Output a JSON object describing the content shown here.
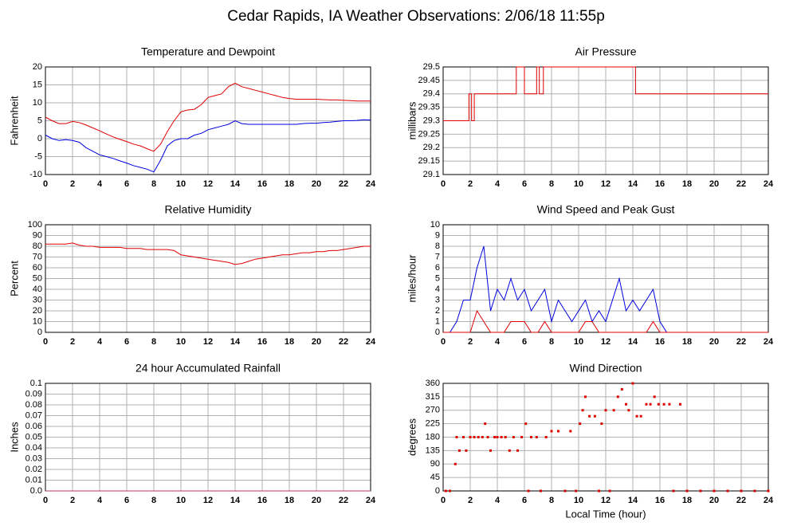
{
  "title": "Cedar Rapids, IA Weather Observations: 2/06/18 11:55p",
  "chart_data": [
    {
      "type": "line",
      "title": "Temperature and Dewpoint",
      "ylabel": "Fahrenheit",
      "xlim": [
        0,
        24
      ],
      "xticks": [
        0,
        2,
        4,
        6,
        8,
        10,
        12,
        14,
        16,
        18,
        20,
        22,
        24
      ],
      "ylim": [
        -10,
        20
      ],
      "yticks": [
        -10,
        -5,
        0,
        5,
        10,
        15,
        20
      ],
      "grid": true,
      "x": [
        0,
        0.5,
        1,
        1.5,
        2,
        2.5,
        3,
        3.5,
        4,
        4.5,
        5,
        5.5,
        6,
        6.5,
        7,
        7.5,
        8,
        8.5,
        9,
        9.5,
        10,
        10.5,
        11,
        11.5,
        12,
        12.5,
        13,
        13.5,
        14,
        14.5,
        15,
        15.5,
        16,
        16.5,
        17,
        17.5,
        18,
        18.5,
        19,
        19.5,
        20,
        20.5,
        21,
        21.5,
        22,
        22.5,
        23,
        23.5,
        24
      ],
      "series": [
        {
          "color": "#e00000",
          "values": [
            6,
            5,
            4.2,
            4.2,
            4.8,
            4.5,
            3.8,
            3,
            2.2,
            1.3,
            0.5,
            -0.2,
            -0.8,
            -1.5,
            -2,
            -2.8,
            -3.5,
            -1.5,
            2,
            5,
            7.5,
            8,
            8.2,
            9.5,
            11.5,
            12,
            12.5,
            14.5,
            15.5,
            14.5,
            14,
            13.5,
            13,
            12.5,
            12,
            11.5,
            11.2,
            11,
            11,
            11,
            11,
            10.9,
            10.8,
            10.8,
            10.7,
            10.6,
            10.5,
            10.5,
            10.5
          ]
        },
        {
          "color": "#0000e0",
          "values": [
            1,
            0,
            -0.5,
            -0.3,
            -0.5,
            -1,
            -2.5,
            -3.5,
            -4.5,
            -5,
            -5.5,
            -6.2,
            -6.8,
            -7.5,
            -8,
            -8.5,
            -9.3,
            -6,
            -2,
            -0.5,
            0,
            0,
            1,
            1.5,
            2.5,
            3,
            3.5,
            4,
            5,
            4.2,
            4,
            4,
            4,
            4,
            4,
            4,
            4,
            4,
            4.2,
            4.3,
            4.3,
            4.5,
            4.6,
            4.8,
            5,
            5,
            5.1,
            5.3,
            5.2
          ]
        }
      ]
    },
    {
      "type": "line",
      "title": "Air Pressure",
      "ylabel": "millibars",
      "xlim": [
        0,
        24
      ],
      "xticks": [
        0,
        2,
        4,
        6,
        8,
        10,
        12,
        14,
        16,
        18,
        20,
        22,
        24
      ],
      "ylim": [
        29.1,
        29.5
      ],
      "yticks": [
        29.1,
        29.15,
        29.2,
        29.25,
        29.3,
        29.35,
        29.4,
        29.45,
        29.5
      ],
      "grid": true,
      "x": [
        0,
        1.9,
        1.9,
        2.1,
        2.1,
        2.3,
        2.3,
        5.4,
        5.4,
        6,
        6,
        6.9,
        6.9,
        7.1,
        7.1,
        7.4,
        7.4,
        14.2,
        14.2,
        24
      ],
      "series": [
        {
          "color": "#e00000",
          "values": [
            29.3,
            29.3,
            29.4,
            29.4,
            29.3,
            29.3,
            29.4,
            29.4,
            29.5,
            29.5,
            29.4,
            29.4,
            29.5,
            29.5,
            29.4,
            29.4,
            29.5,
            29.5,
            29.4,
            29.4
          ]
        }
      ]
    },
    {
      "type": "line",
      "title": "Relative Humidity",
      "ylabel": "Percent",
      "xlim": [
        0,
        24
      ],
      "xticks": [
        0,
        2,
        4,
        6,
        8,
        10,
        12,
        14,
        16,
        18,
        20,
        22,
        24
      ],
      "ylim": [
        0,
        100
      ],
      "yticks": [
        0,
        10,
        20,
        30,
        40,
        50,
        60,
        70,
        80,
        90,
        100
      ],
      "grid": true,
      "x": [
        0,
        0.5,
        1,
        1.5,
        2,
        2.5,
        3,
        3.5,
        4,
        4.5,
        5,
        5.5,
        6,
        6.5,
        7,
        7.5,
        8,
        8.5,
        9,
        9.5,
        10,
        10.5,
        11,
        11.5,
        12,
        12.5,
        13,
        13.5,
        14,
        14.5,
        15,
        15.5,
        16,
        16.5,
        17,
        17.5,
        18,
        18.5,
        19,
        19.5,
        20,
        20.5,
        21,
        21.5,
        22,
        22.5,
        23,
        23.5,
        24
      ],
      "series": [
        {
          "color": "#e00000",
          "values": [
            82,
            82,
            82,
            82,
            83,
            81,
            80,
            80,
            79,
            79,
            79,
            79,
            78,
            78,
            78,
            77,
            77,
            77,
            77,
            76,
            72,
            71,
            70,
            69,
            68,
            67,
            66,
            65,
            63,
            64,
            66,
            68,
            69,
            70,
            71,
            72,
            72,
            73,
            74,
            74,
            75,
            75,
            76,
            76,
            77,
            78,
            79,
            80,
            80
          ]
        }
      ]
    },
    {
      "type": "line",
      "title": "Wind Speed and Peak Gust",
      "ylabel": "miles/hour",
      "xlim": [
        0,
        24
      ],
      "xticks": [
        0,
        2,
        4,
        6,
        8,
        10,
        12,
        14,
        16,
        18,
        20,
        22,
        24
      ],
      "ylim": [
        0,
        10
      ],
      "yticks": [
        0,
        1,
        2,
        3,
        4,
        5,
        6,
        7,
        8,
        9,
        10
      ],
      "grid": true,
      "x": [
        0,
        0.5,
        1,
        1.5,
        2,
        2.5,
        3,
        3.5,
        4,
        4.5,
        5,
        5.5,
        6,
        6.5,
        7,
        7.5,
        8,
        8.5,
        9,
        9.5,
        10,
        10.5,
        11,
        11.5,
        12,
        12.5,
        13,
        13.5,
        14,
        14.5,
        15,
        15.5,
        16,
        16.5,
        17,
        17.5,
        18,
        18.5,
        19,
        19.5,
        20,
        20.5,
        21,
        21.5,
        22,
        22.5,
        23,
        23.5,
        24
      ],
      "series": [
        {
          "color": "#0000e0",
          "values": [
            0,
            0,
            1,
            3,
            3,
            6,
            8,
            2,
            4,
            3,
            5,
            3,
            4,
            2,
            3,
            4,
            1,
            3,
            2,
            1,
            2,
            3,
            1,
            2,
            1,
            3,
            5,
            2,
            3,
            2,
            3,
            4,
            1,
            0,
            0,
            0,
            0,
            0,
            0,
            0,
            0,
            0,
            0,
            0,
            0,
            0,
            0,
            0,
            0
          ]
        },
        {
          "color": "#e00000",
          "values": [
            0,
            0,
            0,
            0,
            0,
            2,
            1,
            0,
            0,
            0,
            1,
            1,
            1,
            0,
            0,
            1,
            0,
            0,
            0,
            0,
            0,
            1,
            1,
            0,
            0,
            0,
            0,
            0,
            0,
            0,
            0,
            1,
            0,
            0,
            0,
            0,
            0,
            0,
            0,
            0,
            0,
            0,
            0,
            0,
            0,
            0,
            0,
            0,
            0
          ]
        }
      ]
    },
    {
      "type": "line",
      "title": "24 hour Accumulated Rainfall",
      "ylabel": "Inches",
      "xlim": [
        0,
        24
      ],
      "xticks": [
        0,
        2,
        4,
        6,
        8,
        10,
        12,
        14,
        16,
        18,
        20,
        22,
        24
      ],
      "ylim": [
        0,
        0.1
      ],
      "yticks": [
        {
          "value": 0,
          "label": "0.0"
        },
        0.01,
        0.02,
        0.03,
        0.04,
        0.05,
        0.06,
        0.07,
        0.08,
        0.09,
        0.1
      ],
      "grid": true,
      "x": [
        0,
        24
      ],
      "series": [
        {
          "color": "#c03070",
          "values": [
            0,
            0
          ]
        }
      ]
    },
    {
      "type": "scatter",
      "title": "Wind Direction",
      "ylabel": "degrees",
      "xlabel": "Local Time (hour)",
      "xlim": [
        0,
        24
      ],
      "xticks": [
        0,
        2,
        4,
        6,
        8,
        10,
        12,
        14,
        16,
        18,
        20,
        22,
        24
      ],
      "ylim": [
        0,
        360
      ],
      "yticks": [
        0,
        45,
        90,
        135,
        180,
        225,
        270,
        315,
        360
      ],
      "grid": true,
      "x": [
        0.2,
        0.5,
        0.9,
        1,
        1.2,
        1.5,
        1.7,
        2,
        2.3,
        2.6,
        2.9,
        3.1,
        3.3,
        3.5,
        3.8,
        4,
        4.3,
        4.6,
        4.9,
        5.2,
        5.5,
        5.8,
        6.1,
        6.3,
        6.5,
        6.9,
        7.2,
        7.6,
        8,
        8.5,
        9,
        9.4,
        9.8,
        10.1,
        10.3,
        10.5,
        10.8,
        11.2,
        11.5,
        11.7,
        12,
        12.3,
        12.6,
        12.9,
        13.2,
        13.5,
        13.7,
        14,
        14.3,
        14.6,
        15,
        15.3,
        15.6,
        15.9,
        16.3,
        16.7,
        17,
        17.5,
        18,
        19,
        20,
        21,
        22,
        23,
        24
      ],
      "series": [
        {
          "color": "#e00000",
          "values": [
            0,
            0,
            90,
            180,
            135,
            180,
            135,
            180,
            180,
            180,
            180,
            225,
            180,
            135,
            180,
            180,
            180,
            180,
            135,
            180,
            135,
            180,
            225,
            0,
            180,
            180,
            0,
            180,
            200,
            200,
            0,
            200,
            0,
            225,
            270,
            315,
            250,
            250,
            0,
            225,
            270,
            0,
            270,
            315,
            340,
            290,
            270,
            360,
            250,
            250,
            290,
            290,
            315,
            290,
            290,
            290,
            0,
            290,
            0,
            0,
            0,
            0,
            0,
            0,
            0
          ]
        }
      ]
    }
  ]
}
